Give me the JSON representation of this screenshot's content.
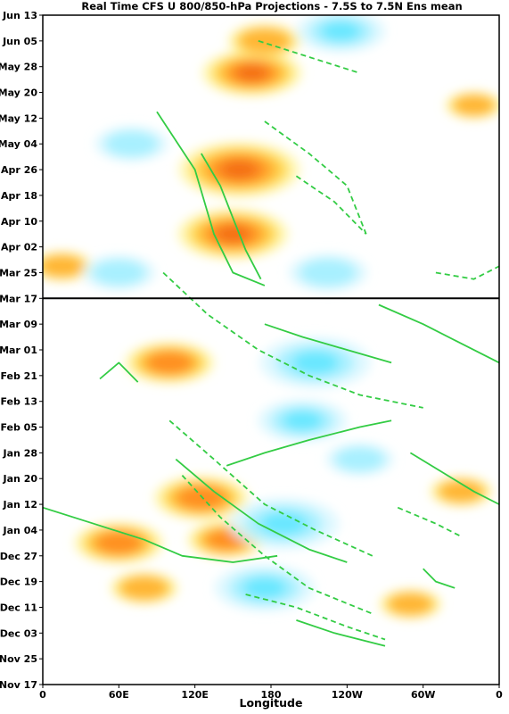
{
  "chart_data": {
    "type": "heatmap",
    "title": "Real Time CFS U 800/850-hPa Projections - 7.5S to 7.5N Ens mean",
    "xlabel": "Longitude",
    "ylabel": "",
    "x_ticks": [
      {
        "lon": 0,
        "label": "0"
      },
      {
        "lon": 60,
        "label": "60E"
      },
      {
        "lon": 120,
        "label": "120E"
      },
      {
        "lon": 180,
        "label": "180"
      },
      {
        "lon": 240,
        "label": "120W"
      },
      {
        "lon": 300,
        "label": "60W"
      },
      {
        "lon": 360,
        "label": "0"
      }
    ],
    "xlim": [
      0,
      360
    ],
    "y_axis": {
      "start_label": "Nov 17",
      "end_label": "Jun 13",
      "range_days": [
        0,
        208
      ],
      "divider_label": "Mar 17",
      "divider_day": 120
    },
    "y_ticks": [
      {
        "day": 0,
        "label": "Nov 17"
      },
      {
        "day": 8,
        "label": "Nov 25"
      },
      {
        "day": 16,
        "label": "Dec 03"
      },
      {
        "day": 24,
        "label": "Dec 11"
      },
      {
        "day": 32,
        "label": "Dec 19"
      },
      {
        "day": 40,
        "label": "Dec 27"
      },
      {
        "day": 48,
        "label": "Jan 04"
      },
      {
        "day": 56,
        "label": "Jan 12"
      },
      {
        "day": 64,
        "label": "Jan 20"
      },
      {
        "day": 72,
        "label": "Jan 28"
      },
      {
        "day": 80,
        "label": "Feb 05"
      },
      {
        "day": 88,
        "label": "Feb 13"
      },
      {
        "day": 96,
        "label": "Feb 21"
      },
      {
        "day": 104,
        "label": "Mar 01"
      },
      {
        "day": 112,
        "label": "Mar 09"
      },
      {
        "day": 120,
        "label": "Mar 17"
      },
      {
        "day": 128,
        "label": "Mar 25"
      },
      {
        "day": 136,
        "label": "Apr 02"
      },
      {
        "day": 144,
        "label": "Apr 10"
      },
      {
        "day": 152,
        "label": "Apr 18"
      },
      {
        "day": 160,
        "label": "Apr 26"
      },
      {
        "day": 168,
        "label": "May 04"
      },
      {
        "day": 176,
        "label": "May 12"
      },
      {
        "day": 184,
        "label": "May 20"
      },
      {
        "day": 192,
        "label": "May 28"
      },
      {
        "day": 200,
        "label": "Jun 05"
      },
      {
        "day": 208,
        "label": "Jun 13"
      }
    ],
    "shading": {
      "positive_colors": [
        "#fff7a8",
        "#ffd84a",
        "#ffb030",
        "#ff8a1e",
        "#f26a10"
      ],
      "negative_colors": [
        "#d8f7ff",
        "#9ff0ff",
        "#5fe6ff"
      ],
      "positive_cores": [
        {
          "lon": 155,
          "day": 160,
          "amp": 1.0
        },
        {
          "lon": 165,
          "day": 190,
          "amp": 0.8
        },
        {
          "lon": 150,
          "day": 140,
          "amp": 0.9
        },
        {
          "lon": 100,
          "day": 100,
          "amp": 0.7
        },
        {
          "lon": 125,
          "day": 58,
          "amp": 0.75
        },
        {
          "lon": 60,
          "day": 44,
          "amp": 0.7
        },
        {
          "lon": 145,
          "day": 45,
          "amp": 0.6
        },
        {
          "lon": 80,
          "day": 30,
          "amp": 0.5
        },
        {
          "lon": 175,
          "day": 200,
          "amp": 0.55
        },
        {
          "lon": 290,
          "day": 25,
          "amp": 0.45
        },
        {
          "lon": 330,
          "day": 60,
          "amp": 0.45
        },
        {
          "lon": 340,
          "day": 180,
          "amp": 0.4
        },
        {
          "lon": 15,
          "day": 130,
          "amp": 0.45
        }
      ],
      "negative_cores": [
        {
          "lon": 215,
          "day": 100,
          "amp": 0.9
        },
        {
          "lon": 190,
          "day": 50,
          "amp": 0.9
        },
        {
          "lon": 175,
          "day": 30,
          "amp": 0.8
        },
        {
          "lon": 205,
          "day": 82,
          "amp": 0.7
        },
        {
          "lon": 235,
          "day": 203,
          "amp": 0.7
        },
        {
          "lon": 225,
          "day": 128,
          "amp": 0.6
        },
        {
          "lon": 70,
          "day": 168,
          "amp": 0.55
        },
        {
          "lon": 60,
          "day": 128,
          "amp": 0.55
        },
        {
          "lon": 250,
          "day": 70,
          "amp": 0.5
        }
      ]
    },
    "contours": {
      "color": "#33cc44",
      "solid": [
        [
          [
            0,
            55
          ],
          [
            40,
            50
          ],
          [
            80,
            45
          ],
          [
            110,
            40
          ],
          [
            150,
            38
          ],
          [
            185,
            40
          ]
        ],
        [
          [
            105,
            70
          ],
          [
            135,
            60
          ],
          [
            170,
            50
          ],
          [
            210,
            42
          ],
          [
            240,
            38
          ]
        ],
        [
          [
            90,
            178
          ],
          [
            120,
            160
          ],
          [
            135,
            140
          ],
          [
            150,
            128
          ],
          [
            175,
            124
          ]
        ],
        [
          [
            145,
            68
          ],
          [
            175,
            72
          ],
          [
            210,
            76
          ],
          [
            250,
            80
          ],
          [
            275,
            82
          ]
        ],
        [
          [
            175,
            112
          ],
          [
            205,
            108
          ],
          [
            240,
            104
          ],
          [
            275,
            100
          ]
        ],
        [
          [
            290,
            72
          ],
          [
            315,
            66
          ],
          [
            340,
            60
          ],
          [
            360,
            56
          ]
        ],
        [
          [
            265,
            118
          ],
          [
            300,
            112
          ],
          [
            330,
            106
          ],
          [
            360,
            100
          ]
        ],
        [
          [
            125,
            165
          ],
          [
            140,
            155
          ],
          [
            150,
            145
          ],
          [
            160,
            135
          ],
          [
            172,
            126
          ]
        ],
        [
          [
            200,
            20
          ],
          [
            230,
            16
          ],
          [
            270,
            12
          ]
        ],
        [
          [
            300,
            36
          ],
          [
            310,
            32
          ],
          [
            325,
            30
          ]
        ],
        [
          [
            45,
            95
          ],
          [
            60,
            100
          ],
          [
            75,
            94
          ]
        ]
      ],
      "dashed": [
        [
          [
            170,
            200
          ],
          [
            210,
            195
          ],
          [
            250,
            190
          ]
        ],
        [
          [
            175,
            175
          ],
          [
            210,
            165
          ],
          [
            240,
            155
          ],
          [
            255,
            140
          ]
        ],
        [
          [
            200,
            158
          ],
          [
            230,
            150
          ],
          [
            255,
            140
          ]
        ],
        [
          [
            95,
            128
          ],
          [
            130,
            115
          ],
          [
            170,
            104
          ],
          [
            210,
            96
          ],
          [
            250,
            90
          ],
          [
            300,
            86
          ]
        ],
        [
          [
            110,
            65
          ],
          [
            140,
            52
          ],
          [
            175,
            40
          ],
          [
            210,
            30
          ],
          [
            260,
            22
          ]
        ],
        [
          [
            100,
            82
          ],
          [
            135,
            70
          ],
          [
            175,
            56
          ],
          [
            215,
            48
          ],
          [
            260,
            40
          ]
        ],
        [
          [
            160,
            28
          ],
          [
            200,
            24
          ],
          [
            240,
            18
          ],
          [
            270,
            14
          ]
        ],
        [
          [
            310,
            128
          ],
          [
            340,
            126
          ],
          [
            360,
            130
          ]
        ],
        [
          [
            280,
            55
          ],
          [
            310,
            50
          ],
          [
            330,
            46
          ]
        ]
      ]
    }
  }
}
